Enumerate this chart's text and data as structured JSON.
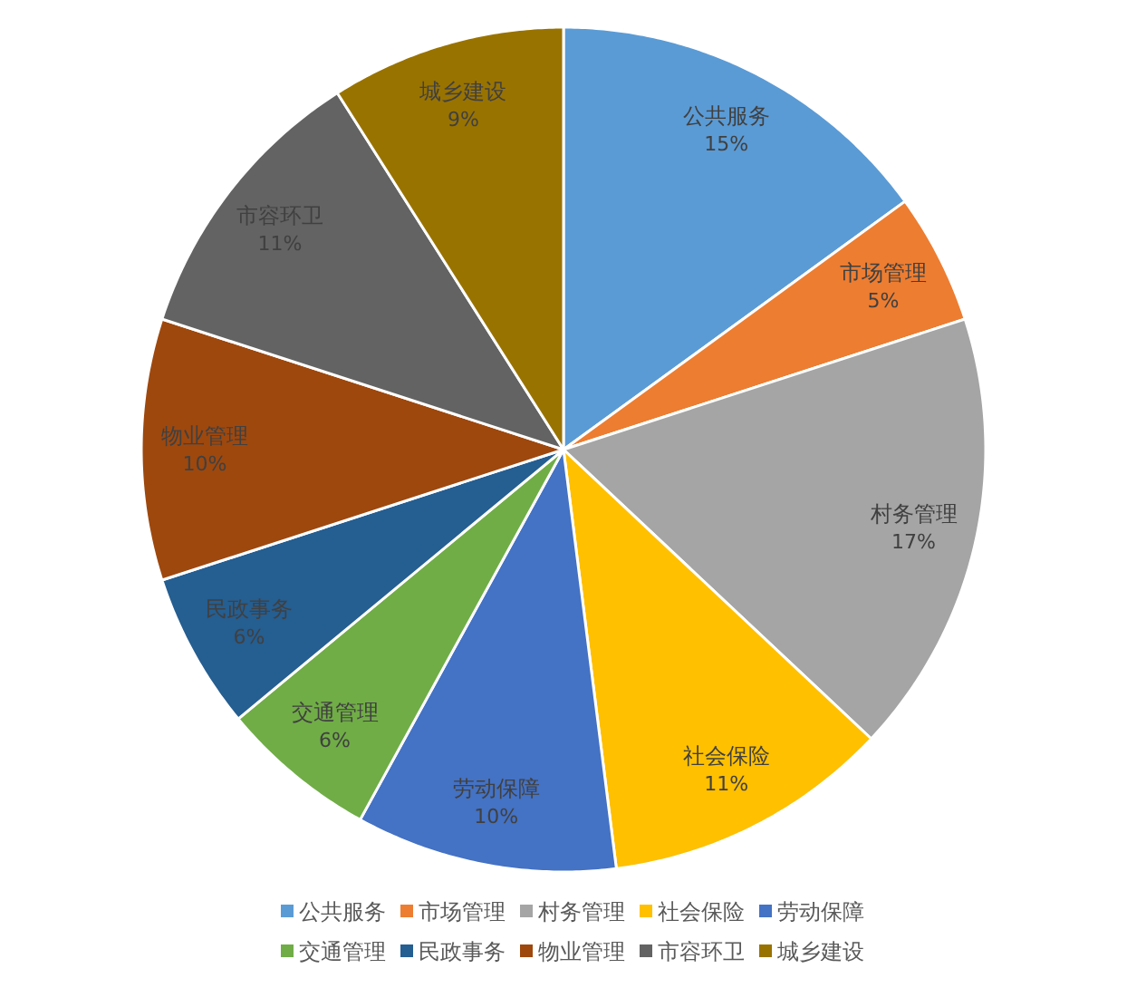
{
  "chart_data": {
    "type": "pie",
    "categories": [
      "公共服务",
      "市场管理",
      "村务管理",
      "社会保险",
      "劳动保障",
      "交通管理",
      "民政事务",
      "物业管理",
      "市容环卫",
      "城乡建设"
    ],
    "values": [
      15,
      5,
      17,
      11,
      10,
      6,
      6,
      10,
      11,
      9
    ],
    "value_labels": [
      "15%",
      "5%",
      "17%",
      "11%",
      "10%",
      "6%",
      "6%",
      "10%",
      "11%",
      "9%"
    ],
    "colors": [
      "#5b9bd5",
      "#ed7d31",
      "#a5a5a5",
      "#ffc000",
      "#4472c4",
      "#70ad47",
      "#255e91",
      "#9e480e",
      "#636363",
      "#997300"
    ],
    "legend": "bottom"
  }
}
